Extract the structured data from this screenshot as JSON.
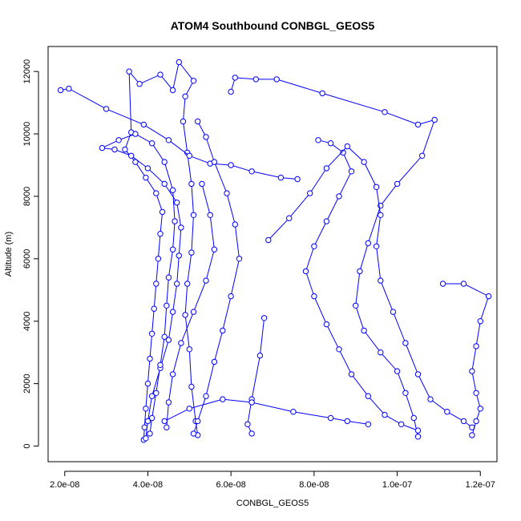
{
  "chart_data": {
    "type": "line",
    "title": "ATOM4 Southbound CONBGL_GEOS5",
    "xlabel": "CONBGL_GEOS5",
    "ylabel": "Altitude (m)",
    "xlim": [
      1.6e-08,
      1.24e-07
    ],
    "ylim": [
      -500,
      12800
    ],
    "x_ticks": [
      2e-08,
      4e-08,
      6e-08,
      8e-08,
      1e-07,
      1.2e-07
    ],
    "x_tick_labels": [
      "2.0e-08",
      "4.0e-08",
      "6.0e-08",
      "8.0e-08",
      "1.0e-07",
      "1.2e-07"
    ],
    "y_ticks": [
      0,
      2000,
      4000,
      6000,
      8000,
      10000,
      12000
    ],
    "y_tick_labels": [
      "0",
      "2000",
      "4000",
      "6000",
      "8000",
      "10000",
      "12000"
    ],
    "grid": false,
    "marker": "open-circle",
    "series_color": "#0000ff",
    "series": [
      {
        "points": [
          [
            3.9e-08,
            200
          ],
          [
            3.92e-08,
            600
          ],
          [
            3.95e-08,
            1200
          ],
          [
            4e-08,
            2000
          ],
          [
            4.05e-08,
            2800
          ],
          [
            4.1e-08,
            3600
          ],
          [
            4.15e-08,
            4400
          ],
          [
            4.2e-08,
            5200
          ],
          [
            4.25e-08,
            6000
          ],
          [
            4.3e-08,
            6800
          ],
          [
            4.35e-08,
            7500
          ],
          [
            4.2e-08,
            8100
          ],
          [
            3.95e-08,
            8600
          ],
          [
            3.7e-08,
            9100
          ],
          [
            3.45e-08,
            9500
          ],
          [
            3.6e-08,
            10050
          ],
          [
            3.55e-08,
            12000
          ],
          [
            3.8e-08,
            11600
          ],
          [
            4.3e-08,
            11900
          ],
          [
            4.6e-08,
            11400
          ],
          [
            4.75e-08,
            12300
          ],
          [
            5.1e-08,
            11700
          ],
          [
            4.9e-08,
            11200
          ],
          [
            4.85e-08,
            10400
          ],
          [
            4.95e-08,
            9400
          ],
          [
            5.05e-08,
            8400
          ],
          [
            5.1e-08,
            7400
          ],
          [
            5.05e-08,
            6200
          ],
          [
            4.95e-08,
            5200
          ],
          [
            4.9e-08,
            4200
          ],
          [
            5e-08,
            3100
          ],
          [
            5.05e-08,
            1900
          ],
          [
            5.15e-08,
            800
          ],
          [
            5.2e-08,
            350
          ]
        ]
      },
      {
        "points": [
          [
            3.95e-08,
            250
          ],
          [
            4e-08,
            800
          ],
          [
            4.1e-08,
            1600
          ],
          [
            4.3e-08,
            2500
          ],
          [
            4.5e-08,
            3400
          ],
          [
            4.6e-08,
            4300
          ],
          [
            4.7e-08,
            5200
          ],
          [
            4.75e-08,
            6100
          ],
          [
            4.8e-08,
            7000
          ],
          [
            4.7e-08,
            7800
          ],
          [
            4.4e-08,
            8400
          ],
          [
            4e-08,
            8900
          ],
          [
            3.6e-08,
            9300
          ],
          [
            3.2e-08,
            9500
          ],
          [
            2.9e-08,
            9550
          ],
          [
            3.3e-08,
            9800
          ],
          [
            3.7e-08,
            10000
          ],
          [
            4.1e-08,
            9700
          ],
          [
            4.4e-08,
            9100
          ],
          [
            4.6e-08,
            8200
          ],
          [
            4.65e-08,
            7200
          ],
          [
            4.6e-08,
            6300
          ],
          [
            4.5e-08,
            5400
          ],
          [
            4.45e-08,
            4500
          ],
          [
            4.4e-08,
            3500
          ],
          [
            4.3e-08,
            2600
          ],
          [
            4.2e-08,
            1700
          ],
          [
            4.1e-08,
            900
          ],
          [
            4.05e-08,
            400
          ]
        ]
      },
      {
        "points": [
          [
            1.9e-08,
            11400
          ],
          [
            2.1e-08,
            11450
          ],
          [
            3e-08,
            10800
          ],
          [
            3.9e-08,
            10300
          ],
          [
            4.5e-08,
            9800
          ],
          [
            5e-08,
            9300
          ],
          [
            5.5e-08,
            9050
          ],
          [
            6e-08,
            9000
          ],
          [
            6.5e-08,
            8800
          ],
          [
            7.2e-08,
            8600
          ],
          [
            7.6e-08,
            8550
          ]
        ]
      },
      {
        "points": [
          [
            6e-08,
            11350
          ],
          [
            6.1e-08,
            11800
          ],
          [
            6.6e-08,
            11750
          ],
          [
            7.1e-08,
            11750
          ],
          [
            8.2e-08,
            11300
          ],
          [
            9.7e-08,
            10700
          ],
          [
            1.05e-07,
            10300
          ],
          [
            1.09e-07,
            10450
          ],
          [
            1.06e-07,
            9300
          ],
          [
            1e-07,
            8400
          ],
          [
            9.6e-08,
            7700
          ],
          [
            9.3e-08,
            6500
          ],
          [
            9.1e-08,
            5600
          ],
          [
            9e-08,
            4500
          ],
          [
            9.2e-08,
            3700
          ],
          [
            9.6e-08,
            3000
          ],
          [
            1e-07,
            2400
          ],
          [
            1.02e-07,
            1700
          ],
          [
            1.04e-07,
            900
          ],
          [
            1.05e-07,
            300
          ]
        ]
      },
      {
        "points": [
          [
            8.1e-08,
            9800
          ],
          [
            8.4e-08,
            9700
          ],
          [
            8.7e-08,
            9400
          ],
          [
            8.9e-08,
            8800
          ],
          [
            8.6e-08,
            8000
          ],
          [
            8.3e-08,
            7200
          ],
          [
            8e-08,
            6400
          ],
          [
            7.8e-08,
            5600
          ],
          [
            8e-08,
            4800
          ],
          [
            8.3e-08,
            3900
          ],
          [
            8.6e-08,
            3100
          ],
          [
            8.9e-08,
            2300
          ],
          [
            9.3e-08,
            1600
          ],
          [
            9.7e-08,
            1000
          ],
          [
            1.01e-07,
            700
          ],
          [
            1.05e-07,
            500
          ]
        ]
      },
      {
        "points": [
          [
            6.9e-08,
            6600
          ],
          [
            7.4e-08,
            7300
          ],
          [
            7.9e-08,
            8100
          ],
          [
            8.3e-08,
            8900
          ],
          [
            8.8e-08,
            9600
          ],
          [
            9.2e-08,
            9100
          ],
          [
            9.5e-08,
            8300
          ],
          [
            9.6e-08,
            7400
          ],
          [
            9.5e-08,
            6400
          ],
          [
            9.6e-08,
            5300
          ],
          [
            9.9e-08,
            4300
          ],
          [
            1.02e-07,
            3300
          ],
          [
            1.05e-07,
            2300
          ],
          [
            1.08e-07,
            1500
          ],
          [
            1.12e-07,
            1100
          ],
          [
            1.16e-07,
            800
          ],
          [
            1.18e-07,
            600
          ]
        ]
      },
      {
        "points": [
          [
            1.11e-07,
            5200
          ],
          [
            1.16e-07,
            5200
          ],
          [
            1.22e-07,
            4800
          ],
          [
            1.2e-07,
            4000
          ],
          [
            1.19e-07,
            3200
          ],
          [
            1.18e-07,
            2400
          ],
          [
            1.19e-07,
            1700
          ],
          [
            1.2e-07,
            1200
          ],
          [
            1.19e-07,
            800
          ],
          [
            1.18e-07,
            350
          ]
        ]
      },
      {
        "points": [
          [
            5.3e-08,
            8400
          ],
          [
            5.5e-08,
            7400
          ],
          [
            5.6e-08,
            6300
          ],
          [
            5.4e-08,
            5300
          ],
          [
            5.1e-08,
            4300
          ],
          [
            4.8e-08,
            3300
          ],
          [
            4.6e-08,
            2300
          ],
          [
            4.5e-08,
            1400
          ],
          [
            4.45e-08,
            600
          ]
        ]
      },
      {
        "points": [
          [
            6.8e-08,
            4100
          ],
          [
            6.7e-08,
            2900
          ],
          [
            6.5e-08,
            1500
          ],
          [
            6.4e-08,
            700
          ],
          [
            6.5e-08,
            400
          ]
        ]
      },
      {
        "points": [
          [
            5.2e-08,
            10400
          ],
          [
            5.4e-08,
            9900
          ],
          [
            5.6e-08,
            9100
          ],
          [
            5.9e-08,
            8100
          ],
          [
            6.1e-08,
            7100
          ],
          [
            6.2e-08,
            6000
          ],
          [
            6e-08,
            4800
          ],
          [
            5.8e-08,
            3700
          ],
          [
            5.6e-08,
            2700
          ],
          [
            5.4e-08,
            1600
          ],
          [
            5.2e-08,
            800
          ],
          [
            5.1e-08,
            400
          ]
        ]
      },
      {
        "points": [
          [
            4.4e-08,
            800
          ],
          [
            5e-08,
            1200
          ],
          [
            5.8e-08,
            1500
          ],
          [
            6.5e-08,
            1400
          ],
          [
            7.5e-08,
            1100
          ],
          [
            8.4e-08,
            900
          ],
          [
            8.8e-08,
            800
          ],
          [
            9.3e-08,
            700
          ]
        ]
      }
    ]
  }
}
